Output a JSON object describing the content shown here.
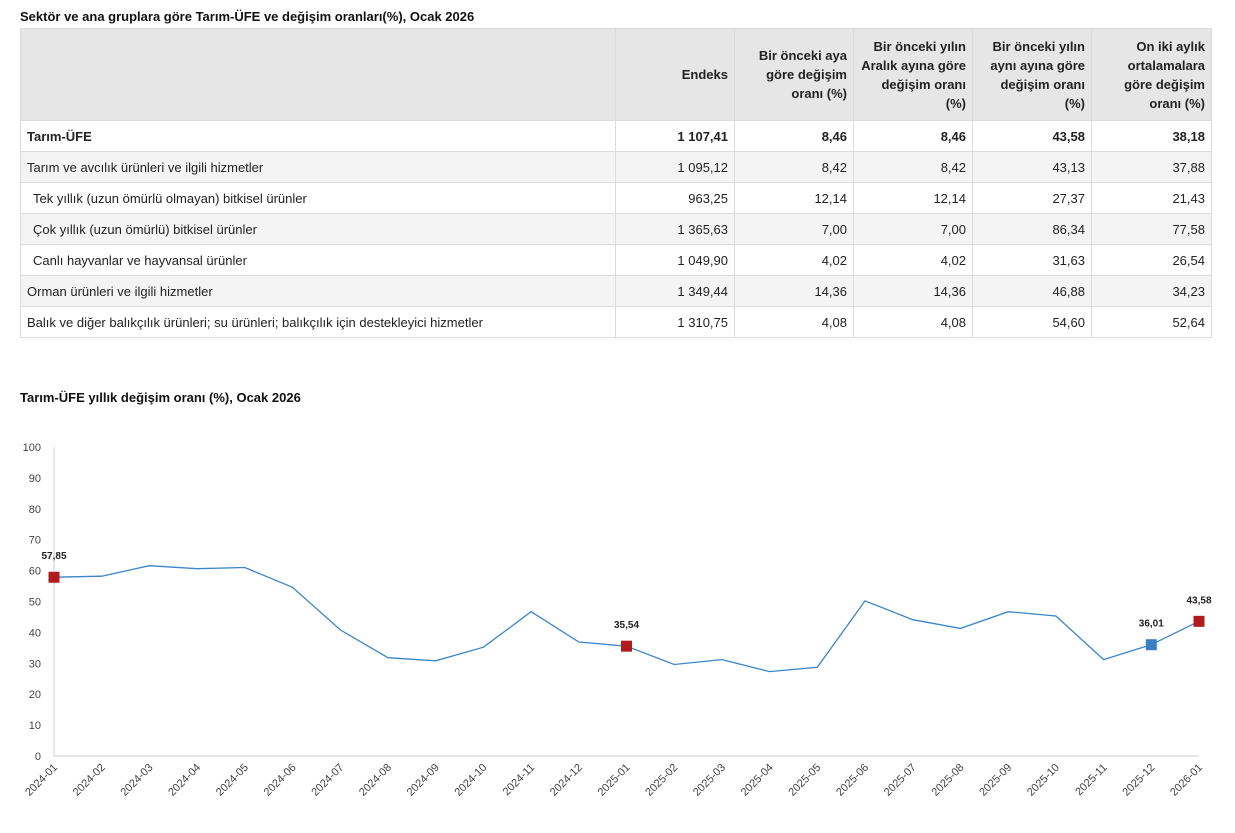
{
  "table": {
    "title": "Sektör ve ana gruplara göre Tarım-ÜFE ve değişim oranları(%), Ocak 2026",
    "headers": [
      "",
      "Endeks",
      "Bir önceki aya göre değişim oranı (%)",
      "Bir önceki yılın Aralık ayına göre değişim oranı (%)",
      "Bir önceki yılın aynı ayına göre değişim oranı (%)",
      "On iki aylık ortalamalara göre değişim oranı (%)"
    ],
    "rows": [
      {
        "name": "Tarım-ÜFE",
        "bold": true,
        "indent": false,
        "values": [
          "1 107,41",
          "8,46",
          "8,46",
          "43,58",
          "38,18"
        ]
      },
      {
        "name": "Tarım ve avcılık ürünleri ve ilgili hizmetler",
        "bold": false,
        "indent": false,
        "values": [
          "1 095,12",
          "8,42",
          "8,42",
          "43,13",
          "37,88"
        ]
      },
      {
        "name": "Tek yıllık (uzun ömürlü olmayan) bitkisel ürünler",
        "bold": false,
        "indent": true,
        "values": [
          "963,25",
          "12,14",
          "12,14",
          "27,37",
          "21,43"
        ]
      },
      {
        "name": "Çok yıllık (uzun ömürlü) bitkisel ürünler",
        "bold": false,
        "indent": true,
        "values": [
          "1 365,63",
          "7,00",
          "7,00",
          "86,34",
          "77,58"
        ]
      },
      {
        "name": "Canlı hayvanlar ve hayvansal ürünler",
        "bold": false,
        "indent": true,
        "values": [
          "1 049,90",
          "4,02",
          "4,02",
          "31,63",
          "26,54"
        ]
      },
      {
        "name": "Orman ürünleri ve ilgili hizmetler",
        "bold": false,
        "indent": false,
        "values": [
          "1 349,44",
          "14,36",
          "14,36",
          "46,88",
          "34,23"
        ]
      },
      {
        "name": "Balık ve diğer balıkçılık ürünleri; su ürünleri; balıkçılık için destekleyici hizmetler",
        "bold": false,
        "indent": false,
        "values": [
          "1 310,75",
          "4,08",
          "4,08",
          "54,60",
          "52,64"
        ]
      }
    ]
  },
  "chart_title": "Tarım-ÜFE yıllık değişim oranı (%), Ocak 2026",
  "chart_data": {
    "type": "line",
    "title": "Tarım-ÜFE yıllık değişim oranı (%), Ocak 2026",
    "xlabel": "",
    "ylabel": "",
    "ylim": [
      0,
      100
    ],
    "yticks": [
      0,
      10,
      20,
      30,
      40,
      50,
      60,
      70,
      80,
      90,
      100
    ],
    "grid": false,
    "categories": [
      "2024-01",
      "2024-02",
      "2024-03",
      "2024-04",
      "2024-05",
      "2024-06",
      "2024-07",
      "2024-08",
      "2024-09",
      "2024-10",
      "2024-11",
      "2024-12",
      "2025-01",
      "2025-02",
      "2025-03",
      "2025-04",
      "2025-05",
      "2025-06",
      "2025-07",
      "2025-08",
      "2025-09",
      "2025-10",
      "2025-11",
      "2025-12",
      "2026-01"
    ],
    "series": [
      {
        "values": [
          57.85,
          58.2,
          61.6,
          60.6,
          61.0,
          54.6,
          40.8,
          31.8,
          30.8,
          35.2,
          46.7,
          36.9,
          35.54,
          29.6,
          31.2,
          27.3,
          28.7,
          50.2,
          44.1,
          41.3,
          46.7,
          45.3,
          31.2,
          36.01,
          43.58
        ]
      }
    ],
    "line_color": "#3a86c8",
    "highlights": [
      {
        "index": 0,
        "label": "57,85",
        "color": "#b01c1c"
      },
      {
        "index": 12,
        "label": "35,54",
        "color": "#b01c1c"
      },
      {
        "index": 23,
        "label": "36,01",
        "color": "#3a7fc4"
      },
      {
        "index": 24,
        "label": "43,58",
        "color": "#b01c1c"
      }
    ]
  }
}
